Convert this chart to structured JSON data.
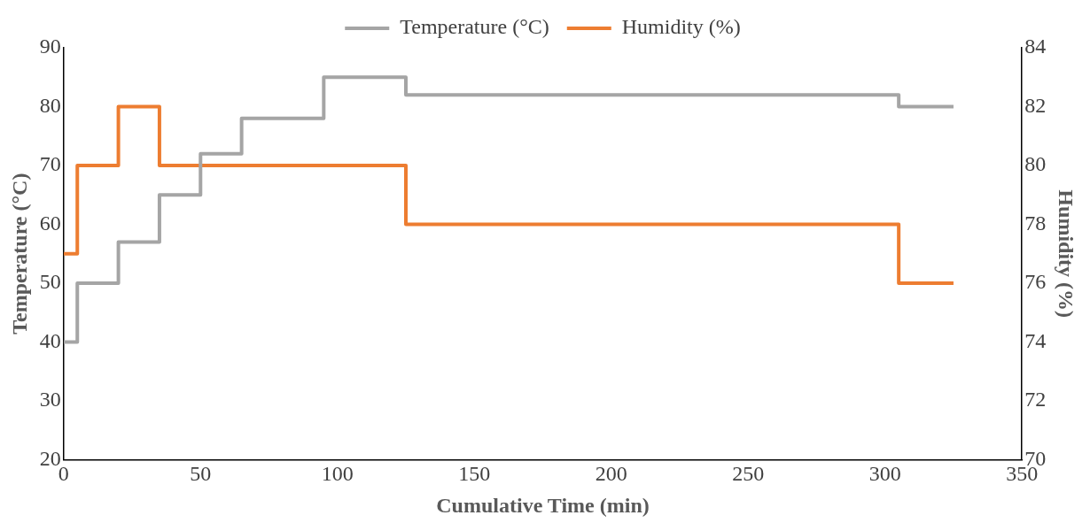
{
  "chart_data": {
    "type": "step",
    "xlabel": "Cumulative Time (min)",
    "ylabel": "Temperature (°C)",
    "y2label": "Humidity (%)",
    "xlim": [
      0,
      350
    ],
    "xticks": [
      0,
      50,
      100,
      150,
      200,
      250,
      300,
      350
    ],
    "ylim": [
      20,
      90
    ],
    "yticks": [
      20,
      30,
      40,
      50,
      60,
      70,
      80,
      90
    ],
    "y2lim": [
      70,
      84
    ],
    "y2ticks": [
      70,
      72,
      74,
      76,
      78,
      80,
      82,
      84
    ],
    "legend": "top",
    "grid": false,
    "series": [
      {
        "name": "Temperature (°C)",
        "color": "#a5a5a5",
        "x": [
          0,
          5,
          20,
          35,
          50,
          65,
          95,
          125,
          305,
          325
        ],
        "values": [
          40,
          50,
          57,
          65,
          72,
          78,
          85,
          82,
          80,
          80
        ]
      },
      {
        "name": "Humidity (%)",
        "color": "#ed7d31",
        "axis": "y2",
        "x": [
          0,
          5,
          20,
          35,
          125,
          305,
          325
        ],
        "values": [
          77,
          80,
          82,
          80,
          78,
          76,
          76
        ]
      }
    ]
  }
}
